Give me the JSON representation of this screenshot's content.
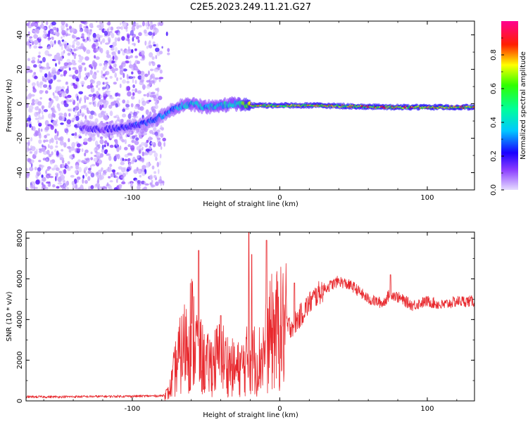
{
  "title": "C2E5.2023.249.11.21.G27",
  "chart_data": [
    {
      "type": "heatmap",
      "ylabel": "Frequency (Hz)",
      "xlabel": "Height of straight line (km)",
      "xlim": [
        -172,
        132
      ],
      "ylim": [
        -50,
        48
      ],
      "xticks": [
        "-100",
        "0",
        "100"
      ],
      "yticks": [
        "40",
        "20",
        "0",
        "-20",
        "-40"
      ],
      "grid": false,
      "colorbar": {
        "label": "Normalized spectral amplitude",
        "ticks": [
          "0.0",
          "0.2",
          "0.4",
          "0.6",
          "0.8"
        ],
        "range": [
          0,
          1
        ],
        "colors": [
          "#d8c8ff",
          "#6a00ff",
          "#0000ff",
          "#00e5ff",
          "#00ff00",
          "#ffff00",
          "#ff0000",
          "#ff0080"
        ]
      },
      "ridge": {
        "x": [
          -130,
          -120,
          -110,
          -100,
          -90,
          -80,
          -70,
          -60,
          -50,
          -40,
          -30,
          -20,
          -10,
          0,
          25,
          50,
          75,
          100,
          132
        ],
        "y": [
          -14,
          -15,
          -14,
          -13,
          -11,
          -7,
          -2,
          0,
          -2,
          -1,
          0,
          -1,
          -1,
          -1,
          -1,
          -1.5,
          -2,
          -2,
          -2
        ],
        "amplitude": [
          0.2,
          0.2,
          0.25,
          0.28,
          0.3,
          0.35,
          0.4,
          0.45,
          0.45,
          0.5,
          0.5,
          0.85,
          0.8,
          0.8,
          0.85,
          0.85,
          0.9,
          0.9,
          0.85
        ]
      },
      "noise_region": {
        "x_range": [
          -172,
          -80
        ],
        "y_range": [
          -50,
          48
        ],
        "amplitude": 0.15
      }
    },
    {
      "type": "line",
      "ylabel": "SNR (10 * v/v)",
      "xlabel": "Height of straight line (km)",
      "xlim": [
        -172,
        132
      ],
      "ylim": [
        0,
        8300
      ],
      "xticks": [
        "-100",
        "0",
        "100"
      ],
      "yticks": [
        "8000",
        "6000",
        "4000",
        "2000",
        "0"
      ],
      "grid": false,
      "color": "#e8282d",
      "x": [
        -172,
        -150,
        -120,
        -100,
        -80,
        -75,
        -70,
        -65,
        -60,
        -55,
        -50,
        -45,
        -40,
        -35,
        -30,
        -25,
        -22,
        -20,
        -15,
        -10,
        -5,
        0,
        5,
        10,
        15,
        20,
        25,
        30,
        40,
        50,
        60,
        70,
        75,
        80,
        90,
        100,
        110,
        120,
        132
      ],
      "y": [
        200,
        200,
        220,
        230,
        250,
        400,
        1800,
        2600,
        3500,
        2400,
        1700,
        1900,
        2200,
        1800,
        1500,
        1700,
        2000,
        2300,
        1900,
        2500,
        3400,
        3500,
        3600,
        3800,
        4300,
        4800,
        5200,
        5500,
        5900,
        5600,
        5000,
        4800,
        5300,
        5100,
        4700,
        4900,
        4700,
        4900,
        4900
      ],
      "peaks": [
        {
          "x": -55,
          "y": 7400
        },
        {
          "x": -21,
          "y": 8300
        },
        {
          "x": -19,
          "y": 7200
        },
        {
          "x": -9,
          "y": 7900
        },
        {
          "x": -40,
          "y": 4200
        },
        {
          "x": 10,
          "y": 5800
        },
        {
          "x": 75,
          "y": 6200
        }
      ]
    }
  ]
}
